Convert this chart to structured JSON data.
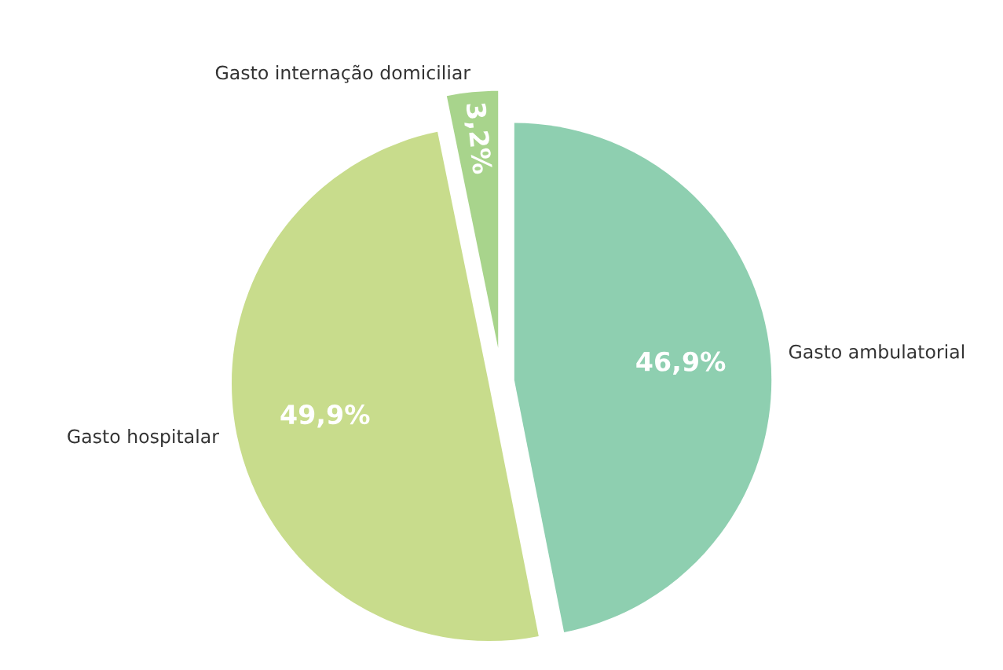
{
  "chart_data": {
    "type": "pie",
    "categories": [
      "Gasto ambulatorial",
      "Gasto hospitalar",
      "Gasto internação domiciliar"
    ],
    "values": [
      46.9,
      49.9,
      3.2
    ],
    "colors": [
      "#8ecfb0",
      "#c8dc8c",
      "#a8d48c"
    ],
    "value_labels": [
      "46,9%",
      "49,9%",
      "3,2%"
    ]
  }
}
